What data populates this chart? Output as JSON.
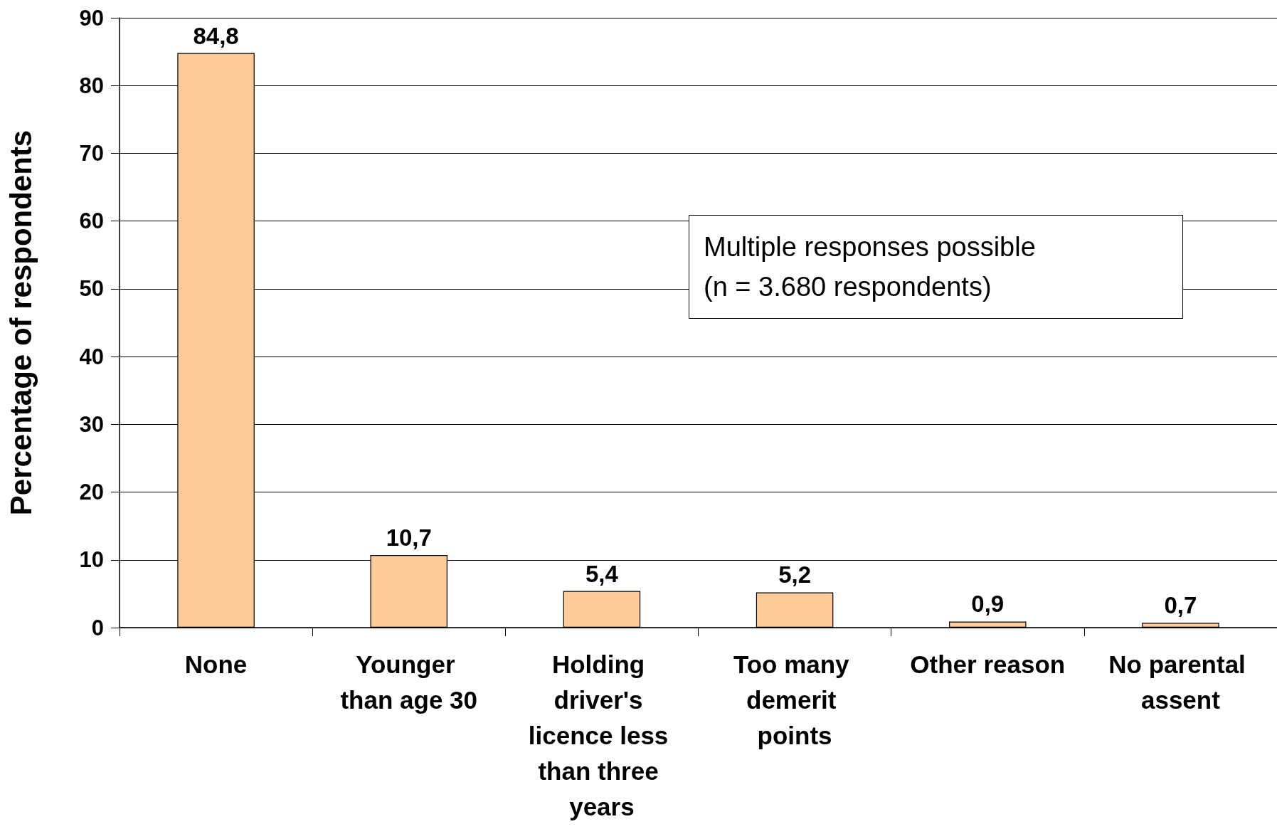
{
  "chart_data": {
    "type": "bar",
    "ylabel": "Percentage of respondents",
    "categories": [
      "None",
      "Younger than age 30",
      "Holding driver's licence less than three years",
      "Too many demerit points",
      "Other reason",
      "No parental assent"
    ],
    "values": [
      84.8,
      10.7,
      5.4,
      5.2,
      0.9,
      0.7
    ],
    "value_labels": [
      "84,8",
      "10,7",
      "5,4",
      "5,2",
      "0,9",
      "0,7"
    ],
    "color": "#ffcc99",
    "ylim": [
      0,
      90
    ],
    "yticks": [
      0,
      10,
      20,
      30,
      40,
      50,
      60,
      70,
      80,
      90
    ],
    "grid": "y",
    "annotations": [
      "Multiple responses possible\n(n = 3.680 respondents)"
    ]
  }
}
